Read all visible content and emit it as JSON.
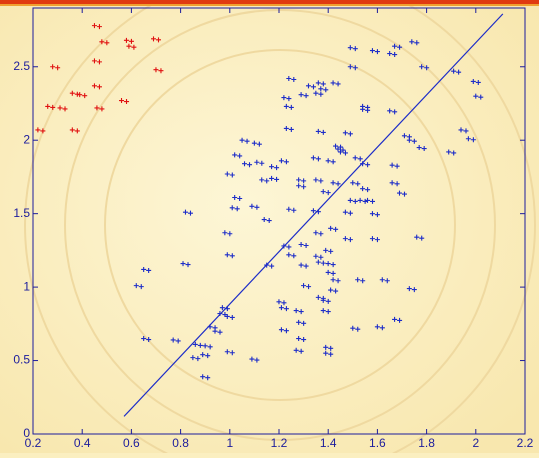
{
  "chart_data": {
    "type": "scatter",
    "xlim": [
      0.2,
      2.2
    ],
    "ylim": [
      0,
      2.9
    ],
    "xticks": [
      0.2,
      0.4,
      0.6,
      0.8,
      1,
      1.2,
      1.4,
      1.6,
      1.8,
      2,
      2.2
    ],
    "yticks": [
      0,
      0.5,
      1,
      1.5,
      2,
      2.5
    ],
    "axis_color": "#1c1c9c",
    "series": [
      {
        "type": "scatter",
        "color": "#e01010",
        "x": [
          0.46,
          0.59,
          0.7,
          0.49,
          0.6,
          0.29,
          0.46,
          0.71,
          0.37,
          0.4,
          0.46,
          0.57,
          0.47,
          0.27,
          0.32,
          0.23,
          0.37
        ],
        "values": [
          2.78,
          2.68,
          2.69,
          2.67,
          2.64,
          2.5,
          2.54,
          2.48,
          2.32,
          2.31,
          2.37,
          2.27,
          2.22,
          2.23,
          2.22,
          2.07,
          2.07
        ]
      },
      {
        "type": "scatter",
        "color": "#1c2cc8",
        "x": [
          1.5,
          1.59,
          1.66,
          1.75,
          1.68,
          1.5,
          1.79,
          1.92,
          1.55,
          1.55,
          1.66,
          2.0,
          2.01,
          1.25,
          1.33,
          1.36,
          1.3,
          1.23,
          1.24,
          1.37,
          1.38,
          1.43,
          1.24,
          1.37,
          1.48,
          1.72,
          1.74,
          1.78,
          1.95,
          1.98,
          1.9,
          1.06,
          1.11,
          1.03,
          1.07,
          1.12,
          1.44,
          1.45,
          1.46,
          1.41,
          1.22,
          1.18,
          1.35,
          1.29,
          1.18,
          1.0,
          1.14,
          1.52,
          1.55,
          1.67,
          1.67,
          1.7,
          1.36,
          1.43,
          1.51,
          1.55,
          1.54,
          1.5,
          1.57,
          1.48,
          1.59,
          1.03,
          1.02,
          1.1,
          1.29,
          1.39,
          1.25,
          1.35,
          0.83,
          1.15,
          0.99,
          1.36,
          1.42,
          1.77,
          1.48,
          1.59,
          1.3,
          1.23,
          1.25,
          1.4,
          1.36,
          1.0,
          1.37,
          1.41,
          1.41,
          1.63,
          1.16,
          1.3,
          0.82,
          0.66,
          0.63,
          1.43,
          1.42,
          1.53,
          1.74,
          1.31,
          1.39,
          1.21,
          1.22,
          1.28,
          0.98,
          0.97,
          1.0,
          1.37,
          1.39,
          1.68,
          1.61,
          1.51,
          1.22,
          1.29,
          0.93,
          0.95,
          0.87,
          0.66,
          0.78,
          1.0,
          0.9,
          1.1,
          1.28,
          1.4,
          0.91,
          0.86,
          0.9,
          1.4,
          1.29
        ],
        "values": [
          2.63,
          2.61,
          2.59,
          2.67,
          2.64,
          2.5,
          2.5,
          2.47,
          2.23,
          2.21,
          2.2,
          2.4,
          2.3,
          2.42,
          2.37,
          2.32,
          2.31,
          2.29,
          2.23,
          2.39,
          2.35,
          2.39,
          2.08,
          2.06,
          2.05,
          2.03,
          2.0,
          1.95,
          2.07,
          2.01,
          1.92,
          2.0,
          1.98,
          1.9,
          1.84,
          1.85,
          1.96,
          1.94,
          1.92,
          1.86,
          1.86,
          1.82,
          1.88,
          1.73,
          1.74,
          1.77,
          1.73,
          1.88,
          1.84,
          1.83,
          1.71,
          1.64,
          1.73,
          1.71,
          1.71,
          1.67,
          1.59,
          1.59,
          1.59,
          1.51,
          1.5,
          1.61,
          1.54,
          1.55,
          1.69,
          1.65,
          1.53,
          1.52,
          1.51,
          1.46,
          1.37,
          1.37,
          1.4,
          1.34,
          1.33,
          1.33,
          1.29,
          1.28,
          1.22,
          1.25,
          1.21,
          1.22,
          1.17,
          1.16,
          1.1,
          1.05,
          1.15,
          1.15,
          1.16,
          1.12,
          1.01,
          1.05,
          0.98,
          1.05,
          0.99,
          1.01,
          0.91,
          0.9,
          0.86,
          0.84,
          0.86,
          0.82,
          0.8,
          0.93,
          0.84,
          0.78,
          0.73,
          0.72,
          0.71,
          0.65,
          0.73,
          0.7,
          0.61,
          0.65,
          0.64,
          0.56,
          0.54,
          0.51,
          0.57,
          0.55,
          0.6,
          0.52,
          0.39,
          0.59,
          0.76
        ]
      },
      {
        "type": "line",
        "color": "#1c2cc8",
        "x": [
          0.57,
          2.11
        ],
        "values": [
          0.12,
          2.86
        ]
      }
    ]
  }
}
